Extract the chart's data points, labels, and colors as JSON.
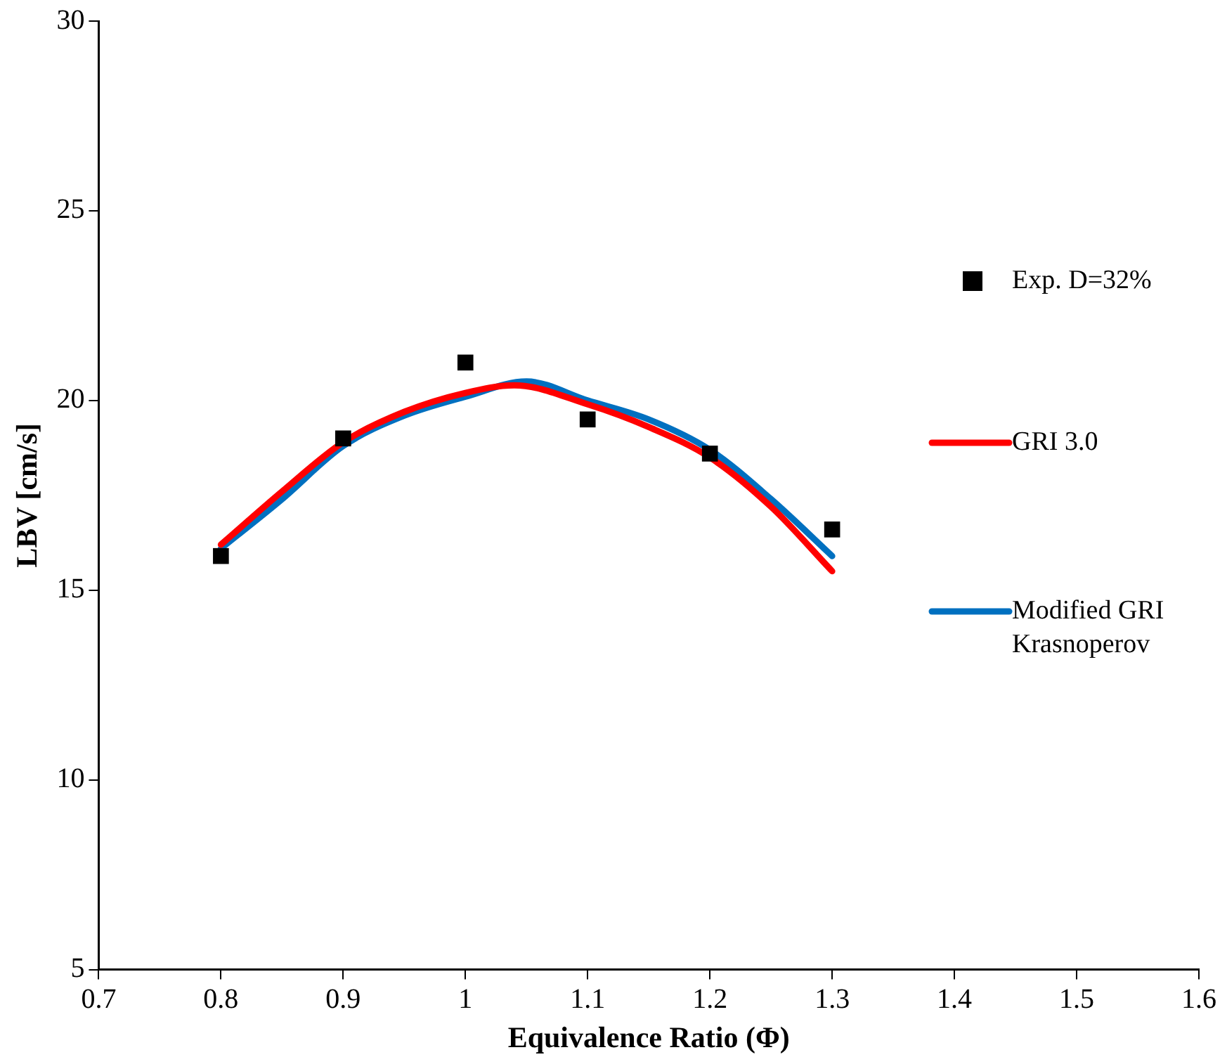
{
  "chart_data": {
    "type": "line",
    "xlabel": "Equivalence Ratio (Φ)",
    "ylabel": "LBV [cm/s]",
    "xlim": [
      0.7,
      1.6
    ],
    "xticks": [
      0.7,
      0.8,
      0.9,
      1,
      1.1,
      1.2,
      1.3,
      1.4,
      1.5,
      1.6
    ],
    "ylim": [
      5,
      30
    ],
    "yticks": [
      5,
      10,
      15,
      20,
      25,
      30
    ],
    "grid": false,
    "legend": "right",
    "series": [
      {
        "name": "Exp. D=32%",
        "type": "scatter",
        "marker": "square",
        "color": "#000000",
        "x": [
          0.8,
          0.9,
          1,
          1.1,
          1.2,
          1.3
        ],
        "values": [
          15.9,
          19.0,
          21.0,
          19.5,
          18.6,
          16.6
        ]
      },
      {
        "name": "GRI 3.0",
        "marker": "none",
        "color": "#ff0000",
        "x": [
          0.8,
          0.85,
          0.9,
          0.95,
          1,
          1.04,
          1.1,
          1.15,
          1.2,
          1.25,
          1.3
        ],
        "values": [
          16.2,
          17.6,
          18.9,
          19.7,
          20.2,
          20.4,
          19.9,
          19.3,
          18.5,
          17.2,
          15.5
        ]
      },
      {
        "name": "Modified GRI Krasnoperov",
        "marker": "none",
        "color": "#0070c0",
        "x": [
          0.8,
          0.85,
          0.9,
          0.95,
          1,
          1.05,
          1.1,
          1.15,
          1.2,
          1.25,
          1.3
        ],
        "values": [
          16.1,
          17.4,
          18.8,
          19.6,
          20.1,
          20.5,
          20.0,
          19.5,
          18.7,
          17.4,
          15.9
        ]
      }
    ]
  }
}
